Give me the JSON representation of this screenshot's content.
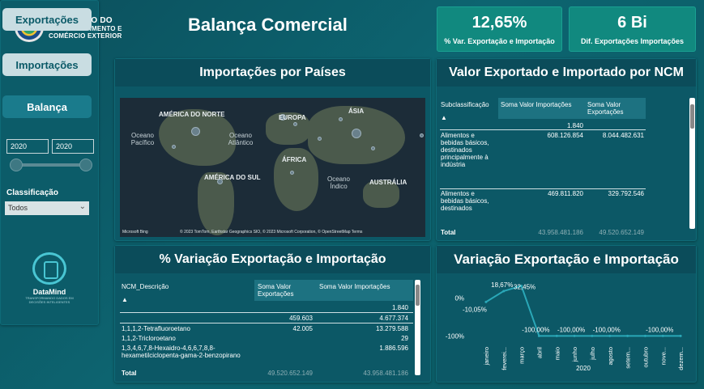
{
  "header": {
    "logo_lines": [
      "MINISTÉRIO DO",
      "DESENVOLVIMENTO E",
      "COMÉRCIO EXTERIOR"
    ],
    "title": "Balança Comercial",
    "kpi1": {
      "value": "12,65%",
      "label": "% Var. Exportação e Importação"
    },
    "kpi2": {
      "value": "6 Bi",
      "label": "Dif. Exportações Importações"
    }
  },
  "sidebar": {
    "nav": [
      "Exportações",
      "Importações",
      "Balança"
    ],
    "year_from": "2020",
    "year_to": "2020",
    "classificacao_label": "Classificação",
    "classificacao_value": "Todos",
    "brand": "DataMind",
    "brand_sub": "TRANSFORMANDO DADOS EM DECISÕES INTELIGENTES"
  },
  "map": {
    "title": "Importações por Países",
    "labels": [
      "AMÉRICA DO NORTE",
      "EUROPA",
      "ÁSIA",
      "Oceano Pacífico",
      "Oceano Atlântico",
      "ÁFRICA",
      "AMÉRICA DO SUL",
      "Oceano Índico",
      "AUSTRÁLIA"
    ],
    "brand": "Microsoft Bing",
    "copyright": "© 2023 TomTom, Earthstar Geographics SIO, © 2023 Microsoft Corporation, © OpenStreetMap  Terms"
  },
  "ncm_table": {
    "title": "Valor Exportado e Importado por NCM",
    "headers": [
      "Subclassificação",
      "Soma Valor Importações",
      "Soma Valor Exportações"
    ],
    "sort_icon": "▲",
    "blank_value": "1.840",
    "rows": [
      {
        "label": "Alimentos e bebidas básicos, destinados principalmente à indústria",
        "imp": "608.126.854",
        "exp": "8.044.482.631"
      },
      {
        "label": "Alimentos e bebidas básicos, destinados",
        "imp": "469.811.820",
        "exp": "329.792.546"
      }
    ],
    "total_label": "Total",
    "total_imp": "43.958.481.186",
    "total_exp": "49.520.652.149"
  },
  "var_table": {
    "title": "% Variação Exportação e Importação",
    "headers": [
      "NCM_Descrição",
      "Soma Valor Exportações",
      "Soma Valor Importações"
    ],
    "sort_icon": "▲",
    "rows": [
      {
        "label": "",
        "exp": "",
        "imp": "1.840"
      },
      {
        "label": "",
        "exp": "459.603",
        "imp": "4.677.374"
      },
      {
        "label": "1,1,1,2-Tetrafluoroetano",
        "exp": "42.005",
        "imp": "13.279.588"
      },
      {
        "label": "1,1,2-Tricloroetano",
        "exp": "",
        "imp": "29"
      },
      {
        "label": "1,3,4,6,7,8-Hexaidro-4,6,6,7,8,8-hexametilciclopenta-gama-2-benzopirano",
        "exp": "",
        "imp": "1.886.596"
      }
    ],
    "total_label": "Total",
    "total_exp": "49.520.652.149",
    "total_imp": "43.958.481.186"
  },
  "chart_data": {
    "type": "line",
    "title": "Variação Exportação e Importação",
    "xlabel": "2020",
    "ylabel": "",
    "categories": [
      "janeiro",
      "fevereiro",
      "março",
      "abril",
      "maio",
      "junho",
      "julho",
      "agosto",
      "setembro",
      "outubro",
      "novembro",
      "dezembro"
    ],
    "category_labels": [
      "janeiro",
      "feverei...",
      "março",
      "abril",
      "maio",
      "junho",
      "julho",
      "agosto",
      "setem...",
      "outubro",
      "nove...",
      "dezem..."
    ],
    "values": [
      -10.05,
      18.67,
      32.45,
      -100,
      -100,
      -100,
      -100,
      -100,
      -100,
      -100,
      -100,
      -100
    ],
    "data_labels": [
      "-10,05%",
      "18,67%",
      "32,45%",
      "-100,00%",
      "",
      "-100,00%",
      "",
      "-100,00%",
      "",
      "",
      "-100,00%",
      ""
    ],
    "y_ticks": [
      {
        "v": 0,
        "label": "0%"
      },
      {
        "v": -100,
        "label": "-100%"
      }
    ],
    "ylim": [
      -110,
      40
    ],
    "colors": {
      "line": "#2aa7b7"
    }
  }
}
